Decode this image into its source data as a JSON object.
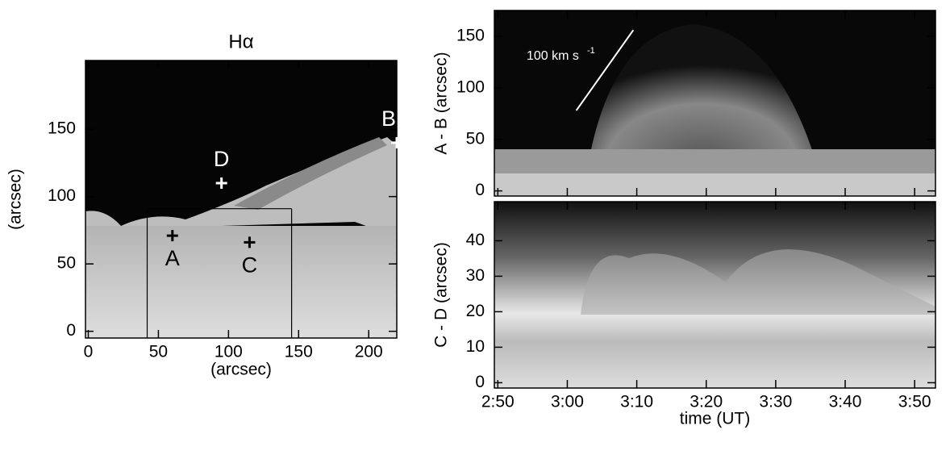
{
  "chart_data": [
    {
      "type": "image",
      "title": "Hα",
      "xlabel": "(arcsec)",
      "ylabel": "(arcsec)",
      "xlim": [
        -2,
        220
      ],
      "ylim": [
        -5,
        201
      ],
      "xticks": [
        0,
        50,
        100,
        150,
        200
      ],
      "yticks": [
        0,
        50,
        100,
        150
      ],
      "markers": [
        {
          "label": "A",
          "x": 60,
          "y": 71
        },
        {
          "label": "B",
          "x": 220,
          "y": 140
        },
        {
          "label": "C",
          "x": 115,
          "y": 66
        },
        {
          "label": "D",
          "x": 95,
          "y": 110
        }
      ],
      "box_x": [
        42,
        145
      ],
      "box_top": 91
    },
    {
      "type": "image",
      "ylabel": "A - B (arcsec)",
      "xlim": [
        169.5,
        233
      ],
      "ylim": [
        -5,
        175
      ],
      "xticks": [
        170,
        180,
        190,
        200,
        210,
        220,
        230
      ],
      "yticks": [
        0,
        50,
        100,
        150
      ],
      "annotation": "100 km s",
      "annotation_sup": "-1",
      "annotation_line_x": [
        181.3,
        189.5
      ],
      "annotation_line_y": [
        78,
        156
      ]
    },
    {
      "type": "image",
      "xlabel": "time (UT)",
      "ylabel": "C - D (arcsec)",
      "xlim": [
        169.5,
        233
      ],
      "ylim": [
        -1.5,
        51
      ],
      "xticks": [
        {
          "value": 170,
          "label": "2:50"
        },
        {
          "value": 180,
          "label": "3:00"
        },
        {
          "value": 190,
          "label": "3:10"
        },
        {
          "value": 200,
          "label": "3:20"
        },
        {
          "value": 210,
          "label": "3:30"
        },
        {
          "value": 220,
          "label": "3:40"
        },
        {
          "value": 230,
          "label": "3:50"
        }
      ],
      "yticks": [
        0,
        10,
        20,
        30,
        40
      ]
    }
  ]
}
